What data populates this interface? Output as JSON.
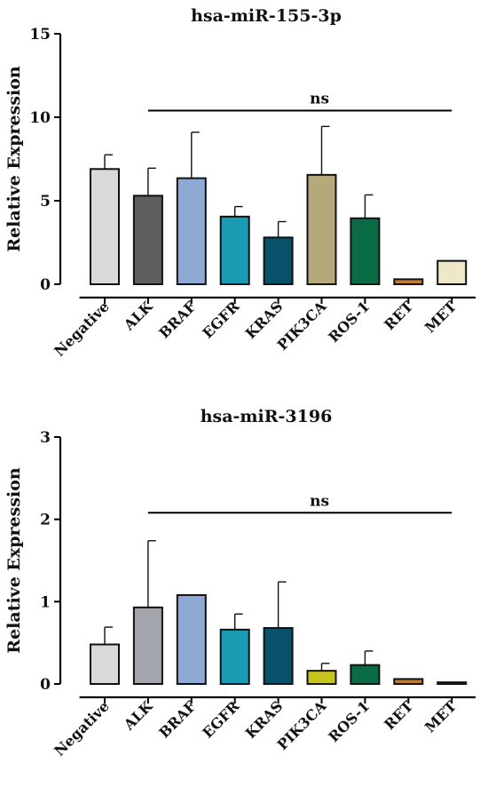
{
  "chart_data": [
    {
      "type": "bar",
      "title": "hsa-miR-155-3p",
      "ylabel": "Relative Expression",
      "xlabel": "",
      "categories": [
        "Negative",
        "ALK",
        "BRAF",
        "EGFR",
        "KRAS",
        "PIK3CA",
        "ROS-1",
        "RET",
        "MET"
      ],
      "values": [
        6.9,
        5.3,
        6.35,
        4.05,
        2.8,
        6.55,
        3.95,
        0.3,
        1.4
      ],
      "error_upper": [
        7.75,
        6.95,
        9.1,
        4.65,
        3.75,
        9.45,
        5.35,
        0.3,
        1.4
      ],
      "ylim": [
        0,
        15
      ],
      "yticks": [
        0,
        5,
        10,
        15
      ],
      "ytick_labels": [
        "0",
        "5",
        "10",
        "15"
      ],
      "colors": [
        "#d9d9d9",
        "#5f5f5f",
        "#8ea9d4",
        "#1a9bb3",
        "#07516a",
        "#b4a97a",
        "#0b6b45",
        "#c07a2e",
        "#efe7c9"
      ],
      "annotation": {
        "text": "ns",
        "from_category": "ALK",
        "to_category": "MET",
        "y": 10.4
      },
      "grid": false,
      "legend": "none"
    },
    {
      "type": "bar",
      "title": "hsa-miR-3196",
      "ylabel": "Relative Expression",
      "xlabel": "",
      "categories": [
        "Negative",
        "ALK",
        "BRAF",
        "EGFR",
        "KRAS",
        "PIK3CA",
        "ROS-1",
        "RET",
        "MET"
      ],
      "values": [
        0.48,
        0.93,
        1.08,
        0.66,
        0.68,
        0.16,
        0.23,
        0.06,
        0.02
      ],
      "error_upper": [
        0.69,
        1.74,
        1.08,
        0.85,
        1.24,
        0.25,
        0.4,
        0.06,
        0.02
      ],
      "ylim": [
        0,
        3
      ],
      "yticks": [
        0,
        1,
        2,
        3
      ],
      "ytick_labels": [
        "0",
        "1",
        "2",
        "3"
      ],
      "colors": [
        "#d9d9d9",
        "#a5a5ad",
        "#8ea9d4",
        "#1a9bb3",
        "#07516a",
        "#c8c41e",
        "#0b6b45",
        "#c07a2e",
        "#efe7c9"
      ],
      "annotation": {
        "text": "ns",
        "from_category": "ALK",
        "to_category": "MET",
        "y": 2.08
      },
      "grid": false,
      "legend": "none"
    }
  ]
}
